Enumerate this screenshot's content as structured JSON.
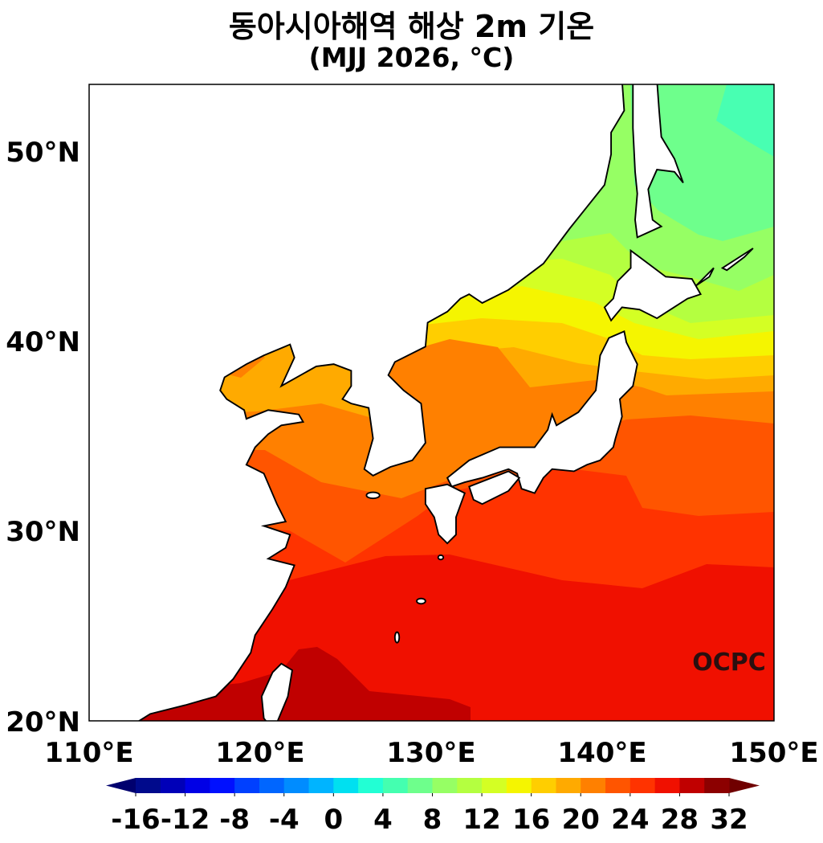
{
  "title": "동아시아해역 해상 2m 기온",
  "subtitle": "(MJJ 2026, °C)",
  "logo_text": "OCPC",
  "map": {
    "type": "filled-contour map",
    "variable": "2m air temperature over sea",
    "lon_range": [
      110,
      150
    ],
    "lat_range": [
      20,
      53.5
    ],
    "lat_ticks": [
      "50°N",
      "40°N",
      "30°N",
      "20°N"
    ],
    "lon_ticks": [
      "110°E",
      "120°E",
      "130°E",
      "140°E",
      "150°E"
    ]
  },
  "colorbar": {
    "levels": [
      -16,
      -14,
      -12,
      -10,
      -8,
      -6,
      -4,
      -2,
      0,
      2,
      4,
      6,
      8,
      10,
      12,
      14,
      16,
      18,
      20,
      22,
      24,
      26,
      28,
      30,
      32
    ],
    "tick_labels": [
      "-16",
      "-12",
      "-8",
      "-4",
      "0",
      "4",
      "8",
      "12",
      "16",
      "20",
      "24",
      "28",
      "32"
    ],
    "colors": [
      "#000a8c",
      "#0000b8",
      "#0000e6",
      "#0010ff",
      "#0040ff",
      "#0066ff",
      "#008cff",
      "#00b4ff",
      "#00e0f0",
      "#22ffd4",
      "#44ffb0",
      "#6eff8c",
      "#96ff64",
      "#b4ff40",
      "#d4ff24",
      "#f5f500",
      "#ffce00",
      "#ffaa00",
      "#ff8000",
      "#ff5500",
      "#ff3300",
      "#f01000",
      "#c00000",
      "#8c0000"
    ],
    "under_color": "#00006e",
    "over_color": "#700000",
    "extend": "both"
  }
}
